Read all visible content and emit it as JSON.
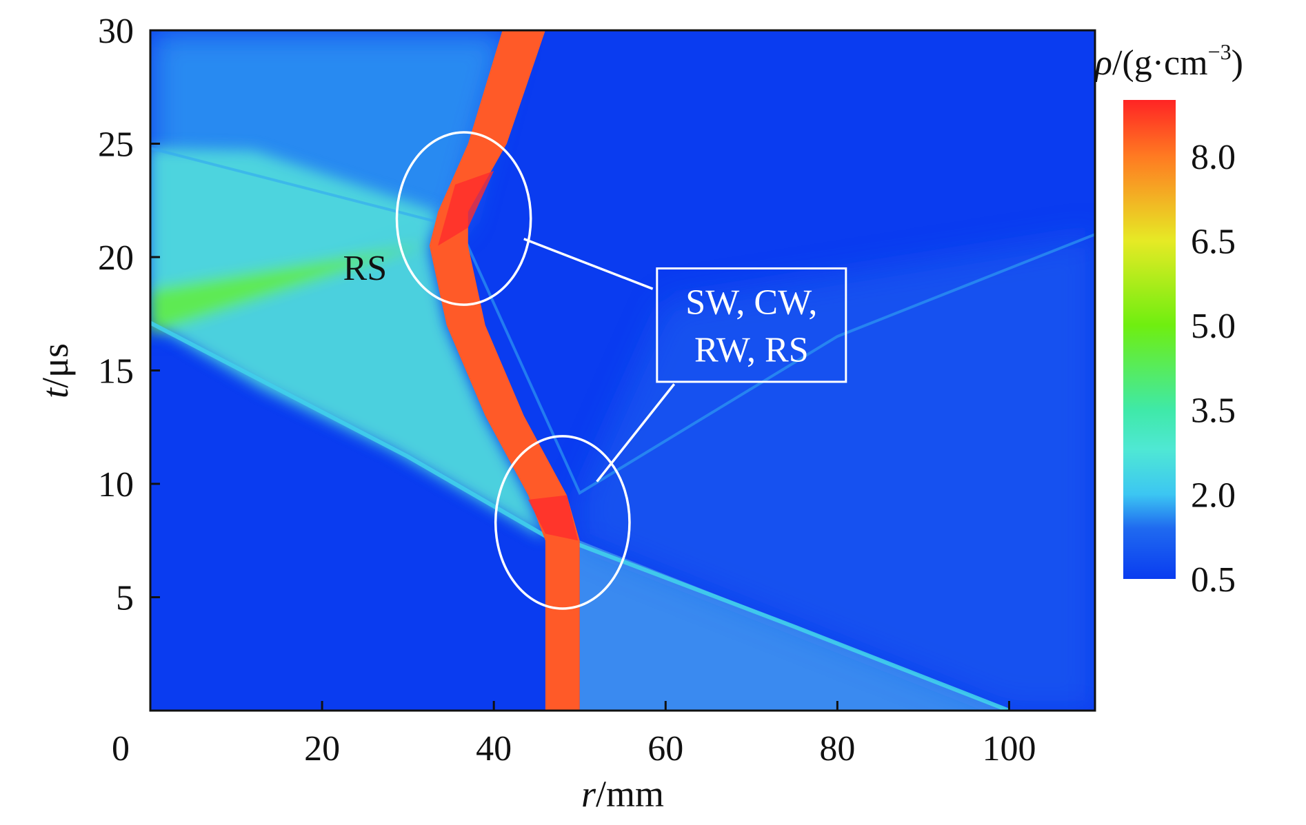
{
  "chart_data": {
    "type": "heatmap",
    "title": "",
    "xlabel": {
      "symbol": "r",
      "unit": "/mm"
    },
    "ylabel": {
      "symbol": "t",
      "unit": "/μs"
    },
    "xlim": [
      0,
      110
    ],
    "ylim": [
      0,
      30
    ],
    "x_ticks": [
      {
        "value": 0,
        "label": "0"
      },
      {
        "value": 20,
        "label": "20"
      },
      {
        "value": 40,
        "label": "40"
      },
      {
        "value": 60,
        "label": "60"
      },
      {
        "value": 80,
        "label": "80"
      },
      {
        "value": 100,
        "label": "100"
      }
    ],
    "y_ticks": [
      {
        "value": 5,
        "label": "5"
      },
      {
        "value": 10,
        "label": "10"
      },
      {
        "value": 15,
        "label": "15"
      },
      {
        "value": 20,
        "label": "20"
      },
      {
        "value": 25,
        "label": "25"
      },
      {
        "value": 30,
        "label": "30"
      }
    ],
    "colorbar": {
      "title_symbol": "ρ",
      "title_unit": "/(g·cm",
      "title_exponent": "−3",
      "title_close": ")",
      "range": [
        0.5,
        9.0
      ],
      "ticks": [
        {
          "value": 0.5,
          "label": "0.5"
        },
        {
          "value": 2.0,
          "label": "2.0"
        },
        {
          "value": 3.5,
          "label": "3.5"
        },
        {
          "value": 5.0,
          "label": "5.0"
        },
        {
          "value": 6.5,
          "label": "6.5"
        },
        {
          "value": 8.0,
          "label": "8.0"
        }
      ],
      "stops": [
        {
          "value": 0.5,
          "color": "#0a3cf0"
        },
        {
          "value": 1.4,
          "color": "#1f6af0"
        },
        {
          "value": 2.0,
          "color": "#3cc6f2"
        },
        {
          "value": 2.8,
          "color": "#4fe8d4"
        },
        {
          "value": 3.5,
          "color": "#3fe9a8"
        },
        {
          "value": 5.0,
          "color": "#6fee10"
        },
        {
          "value": 6.5,
          "color": "#e6ea25"
        },
        {
          "value": 8.0,
          "color": "#ff7a22"
        },
        {
          "value": 9.0,
          "color": "#ff2424"
        }
      ]
    },
    "field": {
      "background": "#0a3cf0",
      "liner_color": "#ff5a28",
      "liner_hot_color": "#ff2c2c",
      "compressed_region_color": "#4fd8dc",
      "shocked_outer_color": "#3a8af0",
      "liner_path": [
        {
          "r_inner": 46.0,
          "r_outer": 50.0,
          "t": 0
        },
        {
          "r_inner": 46.0,
          "r_outer": 50.0,
          "t": 7.5
        },
        {
          "r_inner": 44.0,
          "r_outer": 48.5,
          "t": 9.5
        },
        {
          "r_inner": 39.0,
          "r_outer": 43.5,
          "t": 13.0
        },
        {
          "r_inner": 34.5,
          "r_outer": 39.0,
          "t": 17.0
        },
        {
          "r_inner": 32.5,
          "r_outer": 37.0,
          "t": 20.5
        },
        {
          "r_inner": 33.5,
          "r_outer": 37.0,
          "t": 22.0
        },
        {
          "r_inner": 37.0,
          "r_outer": 41.5,
          "t": 25.0
        },
        {
          "r_inner": 41.0,
          "r_outer": 46.0,
          "t": 30.0
        }
      ]
    },
    "annotations": [
      {
        "text": "RS",
        "x": 25.0,
        "y": 19.0
      },
      {
        "lines": [
          "SW, CW,",
          "RW, RS"
        ],
        "box_x": [
          59,
          81
        ],
        "box_y": [
          14.5,
          19.5
        ]
      }
    ],
    "markers": [
      {
        "type": "ellipse",
        "cx": 36.5,
        "cy": 21.7,
        "rx": 7.8,
        "ry": 3.8
      },
      {
        "type": "ellipse",
        "cx": 48.0,
        "cy": 8.3,
        "rx": 7.8,
        "ry": 3.8
      }
    ],
    "callout_lines": [
      {
        "from": [
          43.5,
          20.8
        ],
        "to": [
          58.5,
          18.6
        ]
      },
      {
        "from": [
          52.0,
          10.1
        ],
        "to": [
          61.0,
          14.4
        ]
      }
    ]
  }
}
